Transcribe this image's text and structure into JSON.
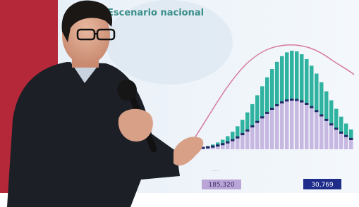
{
  "screen": {
    "title": "Escenario nacional",
    "stats": [
      "185,320",
      "30,769"
    ]
  }
}
